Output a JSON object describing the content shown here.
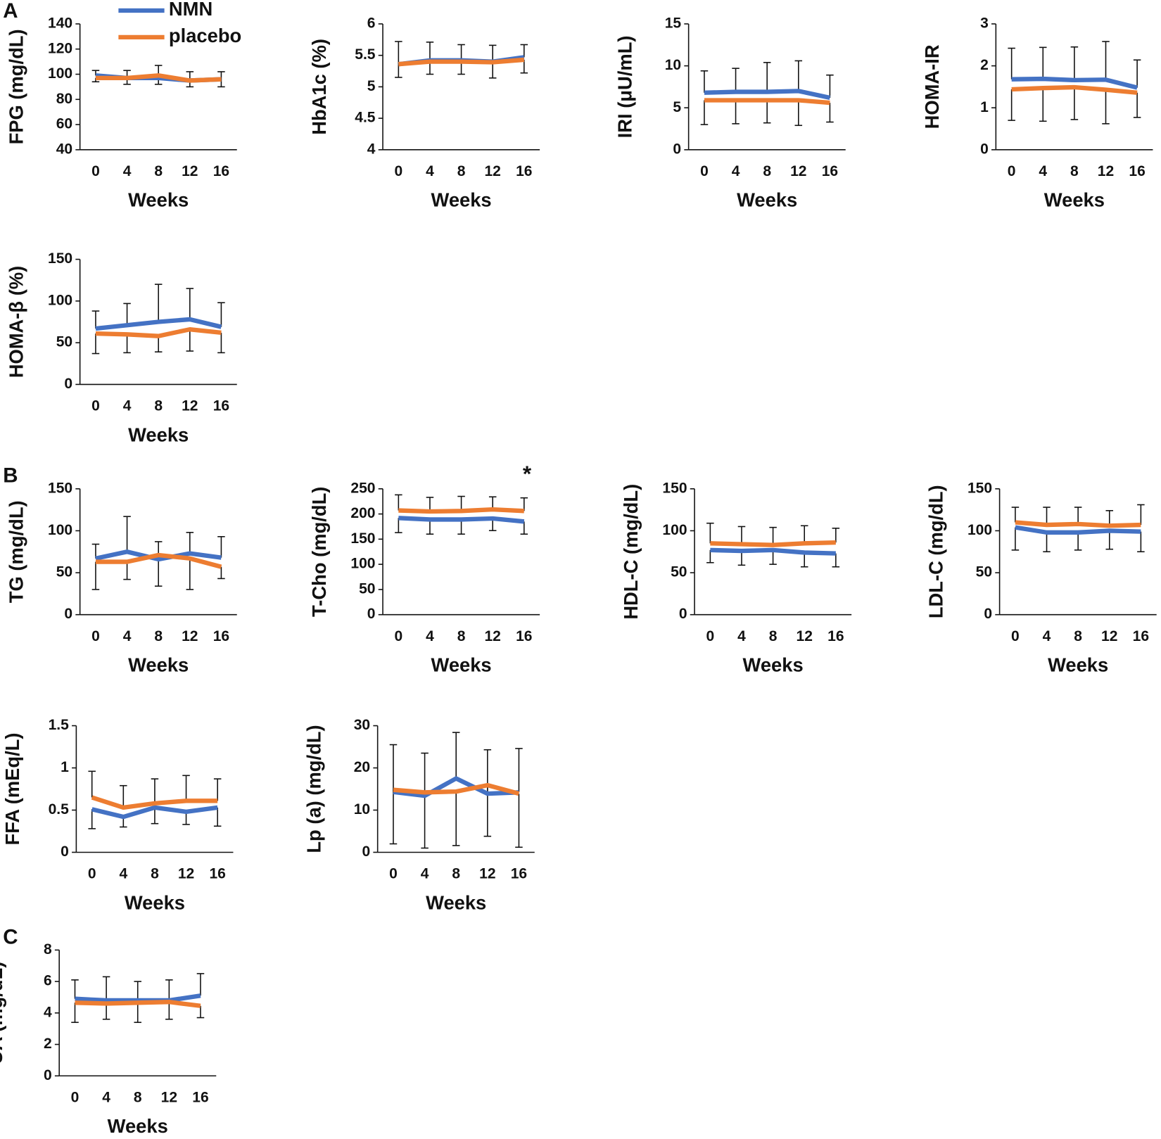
{
  "chart_data": [
    {
      "type": "line",
      "panel": "A",
      "ylabel": "FPG (mg/dL)",
      "xlabel": "Weeks",
      "categories": [
        0,
        4,
        8,
        12,
        16
      ],
      "ylim": [
        40,
        140
      ],
      "yticks": [
        40,
        60,
        80,
        100,
        120,
        140
      ],
      "legend": "top",
      "series": [
        {
          "name": "NMN",
          "color": "#4472c4",
          "error_side": "up",
          "values": [
            99,
            97,
            97,
            95,
            96
          ],
          "errors": [
            4,
            6,
            10,
            7,
            6
          ]
        },
        {
          "name": "placebo",
          "color": "#ed7d31",
          "error_side": "down",
          "values": [
            97,
            97,
            99,
            95,
            96
          ],
          "errors": [
            3,
            5,
            7,
            5,
            6
          ]
        }
      ]
    },
    {
      "type": "line",
      "ylabel": "HbA1c (%)",
      "xlabel": "Weeks",
      "categories": [
        0,
        4,
        8,
        12,
        16
      ],
      "ylim": [
        4,
        6
      ],
      "yticks": [
        4,
        4.5,
        5,
        5.5,
        6
      ],
      "series": [
        {
          "name": "NMN",
          "color": "#4472c4",
          "error_side": "up",
          "values": [
            5.36,
            5.42,
            5.42,
            5.4,
            5.47
          ],
          "errors": [
            0.36,
            0.29,
            0.25,
            0.26,
            0.2
          ]
        },
        {
          "name": "placebo",
          "color": "#ed7d31",
          "error_side": "down",
          "values": [
            5.36,
            5.4,
            5.4,
            5.39,
            5.43
          ],
          "errors": [
            0.21,
            0.2,
            0.2,
            0.25,
            0.21
          ]
        }
      ]
    },
    {
      "type": "line",
      "ylabel": "IRI (μU/mL)",
      "xlabel": "Weeks",
      "categories": [
        0,
        4,
        8,
        12,
        16
      ],
      "ylim": [
        0,
        15
      ],
      "yticks": [
        0,
        5,
        10,
        15
      ],
      "series": [
        {
          "name": "NMN",
          "color": "#4472c4",
          "error_side": "up",
          "values": [
            6.8,
            6.9,
            6.9,
            7.0,
            6.2
          ],
          "errors": [
            2.6,
            2.8,
            3.5,
            3.6,
            2.7
          ]
        },
        {
          "name": "placebo",
          "color": "#ed7d31",
          "error_side": "down",
          "values": [
            5.9,
            5.9,
            5.9,
            5.9,
            5.6
          ],
          "errors": [
            2.9,
            2.8,
            2.7,
            3.0,
            2.3
          ]
        }
      ]
    },
    {
      "type": "line",
      "ylabel": "HOMA-IR",
      "xlabel": "Weeks",
      "categories": [
        0,
        4,
        8,
        12,
        16
      ],
      "ylim": [
        0,
        3
      ],
      "yticks": [
        0,
        1,
        2,
        3
      ],
      "series": [
        {
          "name": "NMN",
          "color": "#4472c4",
          "error_side": "up",
          "values": [
            1.68,
            1.69,
            1.66,
            1.67,
            1.48
          ],
          "errors": [
            0.74,
            0.75,
            0.79,
            0.91,
            0.66
          ]
        },
        {
          "name": "placebo",
          "color": "#ed7d31",
          "error_side": "down",
          "values": [
            1.44,
            1.47,
            1.49,
            1.43,
            1.36
          ],
          "errors": [
            0.74,
            0.79,
            0.77,
            0.81,
            0.59
          ]
        }
      ]
    },
    {
      "type": "line",
      "ylabel": "HOMA-β (%)",
      "xlabel": "Weeks",
      "categories": [
        0,
        4,
        8,
        12,
        16
      ],
      "ylim": [
        0,
        150
      ],
      "yticks": [
        0,
        50,
        100,
        150
      ],
      "series": [
        {
          "name": "NMN",
          "color": "#4472c4",
          "error_side": "up",
          "values": [
            67,
            71,
            75,
            78,
            69
          ],
          "errors": [
            21,
            26,
            45,
            37,
            29
          ]
        },
        {
          "name": "placebo",
          "color": "#ed7d31",
          "error_side": "down",
          "values": [
            61,
            60,
            58,
            66,
            62
          ],
          "errors": [
            24,
            22,
            19,
            26,
            24
          ]
        }
      ]
    },
    {
      "type": "line",
      "panel": "B",
      "ylabel": "TG (mg/dL)",
      "xlabel": "Weeks",
      "categories": [
        0,
        4,
        8,
        12,
        16
      ],
      "ylim": [
        0,
        150
      ],
      "yticks": [
        0,
        50,
        100,
        150
      ],
      "series": [
        {
          "name": "NMN",
          "color": "#4472c4",
          "error_side": "up",
          "values": [
            67,
            75,
            66,
            73,
            68
          ],
          "errors": [
            17,
            42,
            21,
            25,
            25
          ]
        },
        {
          "name": "placebo",
          "color": "#ed7d31",
          "error_side": "down",
          "values": [
            63,
            63,
            71,
            67,
            57
          ],
          "errors": [
            33,
            21,
            37,
            37,
            14
          ]
        }
      ]
    },
    {
      "type": "line",
      "ylabel": "T-Cho (mg/dL)",
      "xlabel": "Weeks",
      "categories": [
        0,
        4,
        8,
        12,
        16
      ],
      "ylim": [
        0,
        250
      ],
      "yticks": [
        0,
        50,
        100,
        150,
        200,
        250
      ],
      "annotation": "*",
      "series": [
        {
          "name": "NMN",
          "color": "#4472c4",
          "error_side": "down",
          "values": [
            192,
            189,
            189,
            191,
            185
          ],
          "errors": [
            29,
            29,
            29,
            24,
            25
          ]
        },
        {
          "name": "placebo",
          "color": "#ed7d31",
          "error_side": "up",
          "values": [
            207,
            205,
            206,
            209,
            206
          ],
          "errors": [
            31,
            28,
            29,
            25,
            26
          ]
        }
      ]
    },
    {
      "type": "line",
      "ylabel": "HDL-C (mg/dL)",
      "xlabel": "Weeks",
      "categories": [
        0,
        4,
        8,
        12,
        16
      ],
      "ylim": [
        0,
        150
      ],
      "yticks": [
        0,
        50,
        100,
        150
      ],
      "series": [
        {
          "name": "NMN",
          "color": "#4472c4",
          "error_side": "down",
          "values": [
            77,
            76,
            77,
            74,
            73
          ],
          "errors": [
            15,
            17,
            17,
            17,
            16
          ]
        },
        {
          "name": "placebo",
          "color": "#ed7d31",
          "error_side": "up",
          "values": [
            85,
            84,
            83,
            85,
            86
          ],
          "errors": [
            24,
            21,
            21,
            21,
            17
          ]
        }
      ]
    },
    {
      "type": "line",
      "ylabel": "LDL-C (mg/dL)",
      "xlabel": "Weeks",
      "categories": [
        0,
        4,
        8,
        12,
        16
      ],
      "ylim": [
        0,
        150
      ],
      "yticks": [
        0,
        50,
        100,
        150
      ],
      "series": [
        {
          "name": "NMN",
          "color": "#4472c4",
          "error_side": "down",
          "values": [
            104,
            98,
            98,
            100,
            99
          ],
          "errors": [
            27,
            23,
            21,
            22,
            24
          ]
        },
        {
          "name": "placebo",
          "color": "#ed7d31",
          "error_side": "up",
          "values": [
            110,
            107,
            108,
            106,
            107
          ],
          "errors": [
            18,
            21,
            20,
            18,
            24
          ]
        }
      ]
    },
    {
      "type": "line",
      "ylabel": "FFA (mEq/L)",
      "xlabel": "Weeks",
      "categories": [
        0,
        4,
        8,
        12,
        16
      ],
      "ylim": [
        0,
        1.5
      ],
      "yticks": [
        0,
        0.5,
        1,
        1.5
      ],
      "series": [
        {
          "name": "NMN",
          "color": "#4472c4",
          "error_side": "down",
          "values": [
            0.51,
            0.42,
            0.53,
            0.48,
            0.53
          ],
          "errors": [
            0.23,
            0.12,
            0.19,
            0.15,
            0.22
          ]
        },
        {
          "name": "placebo",
          "color": "#ed7d31",
          "error_side": "up",
          "values": [
            0.65,
            0.53,
            0.58,
            0.61,
            0.61
          ],
          "errors": [
            0.31,
            0.26,
            0.29,
            0.3,
            0.26
          ]
        }
      ]
    },
    {
      "type": "line",
      "ylabel": "Lp (a) (mg/dL)",
      "xlabel": "Weeks",
      "categories": [
        0,
        4,
        8,
        12,
        16
      ],
      "ylim": [
        0,
        30
      ],
      "yticks": [
        0,
        10,
        20,
        30
      ],
      "series": [
        {
          "name": "NMN",
          "color": "#4472c4",
          "error_side": "up",
          "values": [
            14.3,
            13.4,
            17.5,
            13.9,
            14.2
          ],
          "errors": [
            11.2,
            10.1,
            10.9,
            10.4,
            10.4
          ]
        },
        {
          "name": "placebo",
          "color": "#ed7d31",
          "error_side": "down",
          "values": [
            14.8,
            14.2,
            14.4,
            15.9,
            13.9
          ],
          "errors": [
            12.8,
            13.2,
            12.8,
            12.1,
            12.7
          ]
        }
      ]
    },
    {
      "type": "line",
      "panel": "C",
      "ylabel": "UA (mg/dL)",
      "xlabel": "Weeks",
      "categories": [
        0,
        4,
        8,
        12,
        16
      ],
      "ylim": [
        0,
        8
      ],
      "yticks": [
        0,
        2,
        4,
        6,
        8
      ],
      "series": [
        {
          "name": "NMN",
          "color": "#4472c4",
          "error_side": "up",
          "values": [
            4.9,
            4.8,
            4.8,
            4.8,
            5.1
          ],
          "errors": [
            1.2,
            1.5,
            1.2,
            1.3,
            1.4
          ]
        },
        {
          "name": "placebo",
          "color": "#ed7d31",
          "error_side": "down",
          "values": [
            4.65,
            4.6,
            4.65,
            4.7,
            4.45
          ],
          "errors": [
            1.25,
            1.0,
            1.25,
            1.1,
            0.75
          ]
        }
      ]
    }
  ]
}
